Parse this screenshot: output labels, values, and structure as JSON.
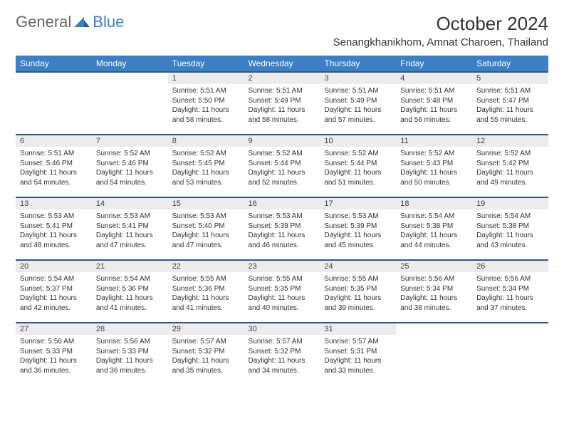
{
  "brand": {
    "part1": "General",
    "part2": "Blue"
  },
  "header": {
    "month_title": "October 2024",
    "location": "Senangkhanikhom, Amnat Charoen, Thailand"
  },
  "colors": {
    "header_bg": "#3b7fc4",
    "week_rule": "#2b5a8a",
    "daynum_bg": "#ececec",
    "text": "#333333"
  },
  "weekdays": [
    "Sunday",
    "Monday",
    "Tuesday",
    "Wednesday",
    "Thursday",
    "Friday",
    "Saturday"
  ],
  "weeks": [
    [
      null,
      null,
      {
        "n": "1",
        "sr": "Sunrise: 5:51 AM",
        "ss": "Sunset: 5:50 PM",
        "d1": "Daylight: 11 hours",
        "d2": "and 58 minutes."
      },
      {
        "n": "2",
        "sr": "Sunrise: 5:51 AM",
        "ss": "Sunset: 5:49 PM",
        "d1": "Daylight: 11 hours",
        "d2": "and 58 minutes."
      },
      {
        "n": "3",
        "sr": "Sunrise: 5:51 AM",
        "ss": "Sunset: 5:49 PM",
        "d1": "Daylight: 11 hours",
        "d2": "and 57 minutes."
      },
      {
        "n": "4",
        "sr": "Sunrise: 5:51 AM",
        "ss": "Sunset: 5:48 PM",
        "d1": "Daylight: 11 hours",
        "d2": "and 56 minutes."
      },
      {
        "n": "5",
        "sr": "Sunrise: 5:51 AM",
        "ss": "Sunset: 5:47 PM",
        "d1": "Daylight: 11 hours",
        "d2": "and 55 minutes."
      }
    ],
    [
      {
        "n": "6",
        "sr": "Sunrise: 5:51 AM",
        "ss": "Sunset: 5:46 PM",
        "d1": "Daylight: 11 hours",
        "d2": "and 54 minutes."
      },
      {
        "n": "7",
        "sr": "Sunrise: 5:52 AM",
        "ss": "Sunset: 5:46 PM",
        "d1": "Daylight: 11 hours",
        "d2": "and 54 minutes."
      },
      {
        "n": "8",
        "sr": "Sunrise: 5:52 AM",
        "ss": "Sunset: 5:45 PM",
        "d1": "Daylight: 11 hours",
        "d2": "and 53 minutes."
      },
      {
        "n": "9",
        "sr": "Sunrise: 5:52 AM",
        "ss": "Sunset: 5:44 PM",
        "d1": "Daylight: 11 hours",
        "d2": "and 52 minutes."
      },
      {
        "n": "10",
        "sr": "Sunrise: 5:52 AM",
        "ss": "Sunset: 5:44 PM",
        "d1": "Daylight: 11 hours",
        "d2": "and 51 minutes."
      },
      {
        "n": "11",
        "sr": "Sunrise: 5:52 AM",
        "ss": "Sunset: 5:43 PM",
        "d1": "Daylight: 11 hours",
        "d2": "and 50 minutes."
      },
      {
        "n": "12",
        "sr": "Sunrise: 5:52 AM",
        "ss": "Sunset: 5:42 PM",
        "d1": "Daylight: 11 hours",
        "d2": "and 49 minutes."
      }
    ],
    [
      {
        "n": "13",
        "sr": "Sunrise: 5:53 AM",
        "ss": "Sunset: 5:41 PM",
        "d1": "Daylight: 11 hours",
        "d2": "and 48 minutes."
      },
      {
        "n": "14",
        "sr": "Sunrise: 5:53 AM",
        "ss": "Sunset: 5:41 PM",
        "d1": "Daylight: 11 hours",
        "d2": "and 47 minutes."
      },
      {
        "n": "15",
        "sr": "Sunrise: 5:53 AM",
        "ss": "Sunset: 5:40 PM",
        "d1": "Daylight: 11 hours",
        "d2": "and 47 minutes."
      },
      {
        "n": "16",
        "sr": "Sunrise: 5:53 AM",
        "ss": "Sunset: 5:39 PM",
        "d1": "Daylight: 11 hours",
        "d2": "and 46 minutes."
      },
      {
        "n": "17",
        "sr": "Sunrise: 5:53 AM",
        "ss": "Sunset: 5:39 PM",
        "d1": "Daylight: 11 hours",
        "d2": "and 45 minutes."
      },
      {
        "n": "18",
        "sr": "Sunrise: 5:54 AM",
        "ss": "Sunset: 5:38 PM",
        "d1": "Daylight: 11 hours",
        "d2": "and 44 minutes."
      },
      {
        "n": "19",
        "sr": "Sunrise: 5:54 AM",
        "ss": "Sunset: 5:38 PM",
        "d1": "Daylight: 11 hours",
        "d2": "and 43 minutes."
      }
    ],
    [
      {
        "n": "20",
        "sr": "Sunrise: 5:54 AM",
        "ss": "Sunset: 5:37 PM",
        "d1": "Daylight: 11 hours",
        "d2": "and 42 minutes."
      },
      {
        "n": "21",
        "sr": "Sunrise: 5:54 AM",
        "ss": "Sunset: 5:36 PM",
        "d1": "Daylight: 11 hours",
        "d2": "and 41 minutes."
      },
      {
        "n": "22",
        "sr": "Sunrise: 5:55 AM",
        "ss": "Sunset: 5:36 PM",
        "d1": "Daylight: 11 hours",
        "d2": "and 41 minutes."
      },
      {
        "n": "23",
        "sr": "Sunrise: 5:55 AM",
        "ss": "Sunset: 5:35 PM",
        "d1": "Daylight: 11 hours",
        "d2": "and 40 minutes."
      },
      {
        "n": "24",
        "sr": "Sunrise: 5:55 AM",
        "ss": "Sunset: 5:35 PM",
        "d1": "Daylight: 11 hours",
        "d2": "and 39 minutes."
      },
      {
        "n": "25",
        "sr": "Sunrise: 5:56 AM",
        "ss": "Sunset: 5:34 PM",
        "d1": "Daylight: 11 hours",
        "d2": "and 38 minutes."
      },
      {
        "n": "26",
        "sr": "Sunrise: 5:56 AM",
        "ss": "Sunset: 5:34 PM",
        "d1": "Daylight: 11 hours",
        "d2": "and 37 minutes."
      }
    ],
    [
      {
        "n": "27",
        "sr": "Sunrise: 5:56 AM",
        "ss": "Sunset: 5:33 PM",
        "d1": "Daylight: 11 hours",
        "d2": "and 36 minutes."
      },
      {
        "n": "28",
        "sr": "Sunrise: 5:56 AM",
        "ss": "Sunset: 5:33 PM",
        "d1": "Daylight: 11 hours",
        "d2": "and 36 minutes."
      },
      {
        "n": "29",
        "sr": "Sunrise: 5:57 AM",
        "ss": "Sunset: 5:32 PM",
        "d1": "Daylight: 11 hours",
        "d2": "and 35 minutes."
      },
      {
        "n": "30",
        "sr": "Sunrise: 5:57 AM",
        "ss": "Sunset: 5:32 PM",
        "d1": "Daylight: 11 hours",
        "d2": "and 34 minutes."
      },
      {
        "n": "31",
        "sr": "Sunrise: 5:57 AM",
        "ss": "Sunset: 5:31 PM",
        "d1": "Daylight: 11 hours",
        "d2": "and 33 minutes."
      },
      null,
      null
    ]
  ]
}
